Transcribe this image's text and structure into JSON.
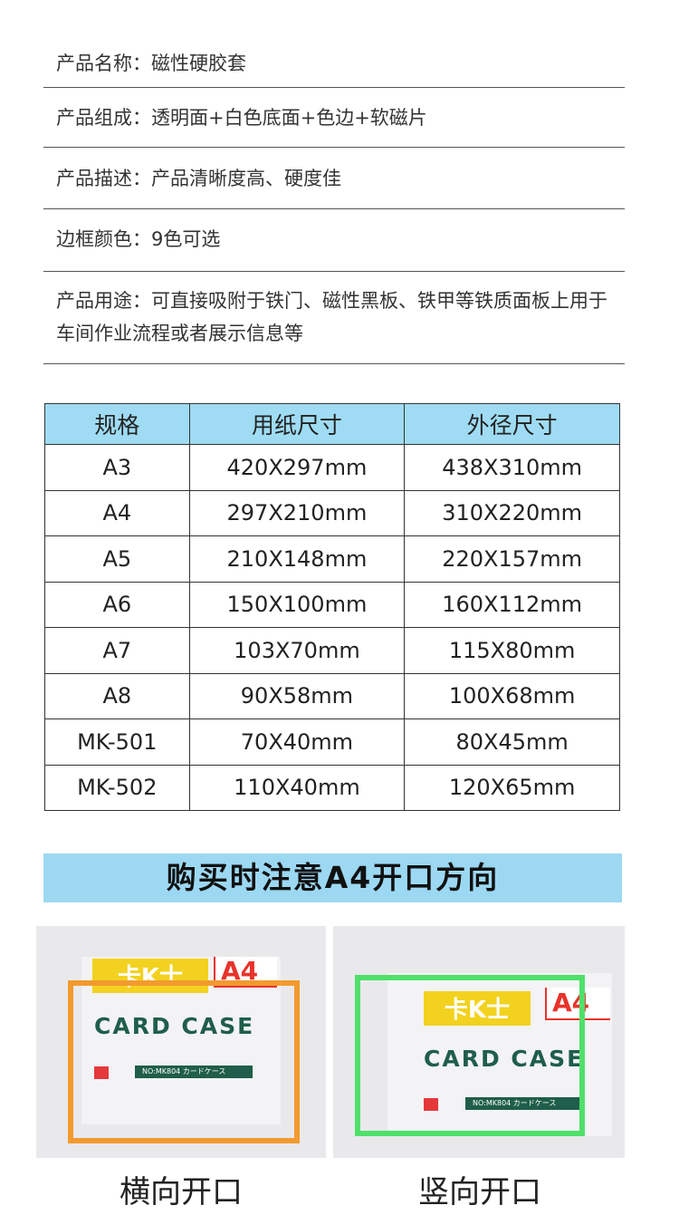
{
  "info": [
    {
      "label": "产品名称：",
      "value": "磁性硬胶套"
    },
    {
      "label": "产品组成：",
      "value": "透明面+白色底面+色边+软磁片"
    },
    {
      "label": "产品描述：",
      "value": "产品清晰度高、硬度佳"
    },
    {
      "label": "边框颜色：",
      "value": "9色可选"
    },
    {
      "label": "产品用途：",
      "value": "可直接吸附于铁门、磁性黑板、铁甲等铁质面板上用于车间作业流程或者展示信息等"
    }
  ],
  "table": {
    "headers": [
      "规格",
      "用纸尺寸",
      "外径尺寸"
    ],
    "rows": [
      [
        "A3",
        "420X297mm",
        "438X310mm"
      ],
      [
        "A4",
        "297X210mm",
        "310X220mm"
      ],
      [
        "A5",
        "210X148mm",
        "220X157mm"
      ],
      [
        "A6",
        "150X100mm",
        "160X112mm"
      ],
      [
        "A7",
        "103X70mm",
        "115X80mm"
      ],
      [
        "A8",
        "90X58mm",
        "100X68mm"
      ],
      [
        "MK-501",
        "70X40mm",
        "80X45mm"
      ],
      [
        "MK-502",
        "110X40mm",
        "120X65mm"
      ]
    ]
  },
  "banner": "购买时注意A4开口方向",
  "product": {
    "logo": "卡K士",
    "size": "A4",
    "title": "CARD CASE",
    "model": "NO:MK804 カードケース"
  },
  "captions": [
    "横向开口",
    "竖向开口"
  ],
  "colors": {
    "header_bg": "#9fdcf3",
    "banner_bg": "#9cd8f2",
    "sleeve_left": "#f39a2e",
    "sleeve_right": "#4fe06a"
  }
}
